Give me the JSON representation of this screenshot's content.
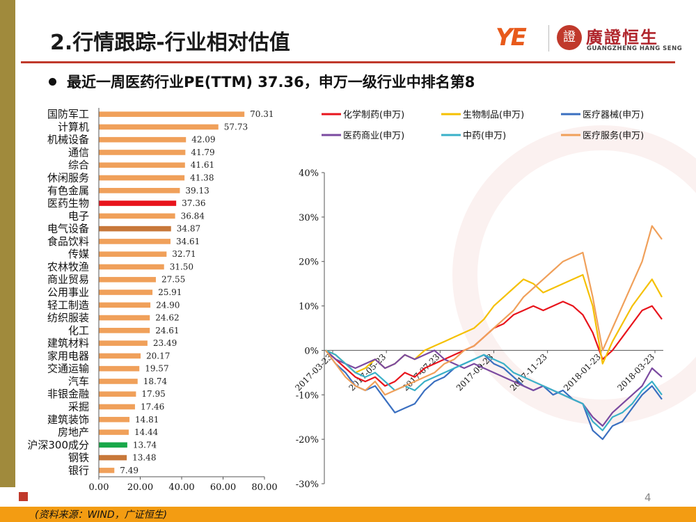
{
  "title": "2.行情跟踪-行业相对估值",
  "logo": {
    "mark": "YE",
    "seal": "證",
    "name_cn": "廣證恒生",
    "name_en": "GUANGZHENG HANG SENG"
  },
  "subtitle": "最近一周医药行业PE(TTM) 37.36，申万一级行业中排名第8",
  "source": "(资料来源：WIND，广证恒生)",
  "page_number": "4",
  "colors": {
    "accent_red": "#c0392b",
    "band_orange": "#f39c12",
    "left_bar": "#a08a3c"
  },
  "chart_data": [
    {
      "type": "bar",
      "orientation": "horizontal",
      "categories": [
        "国防军工",
        "计算机",
        "机械设备",
        "通信",
        "综合",
        "休闲服务",
        "有色金属",
        "医药生物",
        "电子",
        "电气设备",
        "食品饮料",
        "传媒",
        "农林牧渔",
        "商业贸易",
        "公用事业",
        "轻工制造",
        "纺织服装",
        "化工",
        "建筑材料",
        "家用电器",
        "交通运输",
        "汽车",
        "非银金融",
        "采掘",
        "建筑装饰",
        "房地产",
        "沪深300成分",
        "钢铁",
        "银行"
      ],
      "values": [
        70.31,
        57.73,
        42.09,
        41.79,
        41.61,
        41.38,
        39.13,
        37.36,
        36.84,
        34.87,
        34.61,
        32.71,
        31.5,
        27.55,
        25.91,
        24.9,
        24.62,
        24.61,
        23.49,
        20.17,
        19.57,
        18.74,
        17.95,
        17.46,
        14.81,
        14.44,
        13.74,
        13.48,
        7.49
      ],
      "value_labels": [
        "70.31",
        "57.73",
        "42.09",
        "41.79",
        "41.61",
        "41.38",
        "39.13",
        "37.36",
        "36.84",
        "34.87",
        "34.61",
        "32.71",
        "31.50",
        "27.55",
        "25.91",
        "24.90",
        "24.62",
        "24.61",
        "23.49",
        "20.17",
        "19.57",
        "18.74",
        "17.95",
        "17.46",
        "14.81",
        "14.44",
        "13.74",
        "13.48",
        "7.49"
      ],
      "bar_colors": {
        "default": "#f0a05a",
        "医药生物": "#e8141c",
        "电气设备": "#c8783a",
        "沪深300成分": "#1aa84a",
        "钢铁": "#c8783a"
      },
      "xlim": [
        0,
        80
      ],
      "xticks": [
        "0.00",
        "20.00",
        "40.00",
        "60.00",
        "80.00"
      ],
      "grid": false
    },
    {
      "type": "line",
      "x_ticks": [
        "2017-03-23",
        "2017-05-23",
        "2017-07-23",
        "2017-09-23",
        "2017-11-23",
        "2018-01-23",
        "2018-03-23"
      ],
      "ylim": [
        -30,
        40
      ],
      "yticks": [
        "-30%",
        "-20%",
        "-10%",
        "0%",
        "10%",
        "20%",
        "30%",
        "40%"
      ],
      "legend_position": "top",
      "series": [
        {
          "name": "化学制药(申万)",
          "color": "#e8141c",
          "values": [
            0,
            -2,
            -4,
            -6,
            -7,
            -6,
            -8,
            -7,
            -5,
            -6,
            -4,
            -3,
            -2,
            -1,
            0,
            1,
            3,
            5,
            6,
            8,
            9,
            10,
            9,
            10,
            11,
            10,
            8,
            4,
            -2,
            0,
            3,
            6,
            9,
            10,
            7
          ]
        },
        {
          "name": "生物制品(申万)",
          "color": "#f5c000",
          "values": [
            0,
            -1,
            -3,
            -5,
            -4,
            -2,
            -4,
            -3,
            -1,
            -2,
            0,
            1,
            2,
            3,
            4,
            5,
            7,
            10,
            12,
            14,
            16,
            15,
            13,
            14,
            15,
            16,
            17,
            10,
            -3,
            2,
            6,
            10,
            13,
            16,
            12
          ]
        },
        {
          "name": "医疗器械(申万)",
          "color": "#3a6fc0",
          "values": [
            0,
            -3,
            -5,
            -8,
            -9,
            -8,
            -11,
            -14,
            -13,
            -12,
            -9,
            -7,
            -6,
            -4,
            -3,
            -2,
            -1,
            -3,
            -4,
            -6,
            -8,
            -9,
            -8,
            -10,
            -9,
            -11,
            -12,
            -18,
            -20,
            -17,
            -16,
            -13,
            -10,
            -8,
            -11
          ]
        },
        {
          "name": "医药商业(申万)",
          "color": "#7b4aa0",
          "values": [
            0,
            -2,
            -3,
            -4,
            -3,
            -2,
            -4,
            -3,
            -1,
            -2,
            -1,
            0,
            -2,
            -3,
            -4,
            -3,
            -4,
            -5,
            -6,
            -7,
            -8,
            -9,
            -8,
            -9,
            -10,
            -11,
            -12,
            -15,
            -17,
            -14,
            -12,
            -10,
            -8,
            -4,
            -6
          ]
        },
        {
          "name": "中药(申万)",
          "color": "#3ab0c8",
          "values": [
            0,
            -1,
            -3,
            -5,
            -6,
            -5,
            -7,
            -9,
            -8,
            -9,
            -7,
            -6,
            -5,
            -4,
            -3,
            -2,
            -1,
            -2,
            -3,
            -5,
            -6,
            -7,
            -8,
            -9,
            -10,
            -11,
            -12,
            -16,
            -18,
            -15,
            -14,
            -12,
            -9,
            -7,
            -10
          ]
        },
        {
          "name": "医疗服务(申万)",
          "color": "#f0a05a",
          "values": [
            0,
            -3,
            -6,
            -8,
            -9,
            -7,
            -10,
            -9,
            -8,
            -7,
            -6,
            -5,
            -3,
            -2,
            0,
            1,
            3,
            5,
            7,
            9,
            12,
            14,
            16,
            18,
            20,
            21,
            22,
            12,
            0,
            5,
            10,
            15,
            20,
            28,
            25
          ]
        }
      ]
    }
  ]
}
